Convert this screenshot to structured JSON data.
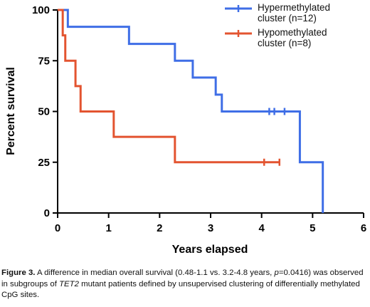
{
  "chart_data": {
    "type": "line",
    "step": true,
    "xlabel": "Years elapsed",
    "ylabel": "Percent survival",
    "xlim": [
      0,
      6
    ],
    "ylim": [
      0,
      100
    ],
    "xticks": [
      "0",
      "1",
      "2",
      "3",
      "4",
      "5",
      "6"
    ],
    "yticks": [
      "0",
      "25",
      "50",
      "75",
      "100"
    ],
    "grid": false,
    "legend": "top-right",
    "series": [
      {
        "name": "Hypermethylated cluster (n=12)",
        "legend_lines": [
          "Hypermethylated",
          "cluster (n=12)"
        ],
        "color": "#3f6ee6",
        "x": [
          0,
          0.2,
          1.4,
          2.3,
          2.65,
          3.1,
          3.22,
          4.75,
          5.2
        ],
        "y": [
          100,
          91.7,
          83.3,
          75,
          66.7,
          58.3,
          50,
          25,
          0
        ],
        "censored_x": [
          4.15,
          4.25,
          4.45
        ],
        "censored_y": [
          50,
          50,
          50
        ]
      },
      {
        "name": "Hypomethylated cluster (n=8)",
        "legend_lines": [
          "Hypomethylated",
          "cluster (n=8)"
        ],
        "color": "#e35430",
        "x": [
          0,
          0.1,
          0.15,
          0.35,
          0.45,
          1.1,
          2.3,
          4.35
        ],
        "y": [
          100,
          87.5,
          75,
          62.5,
          50,
          37.5,
          25,
          25
        ],
        "censored_x": [
          4.05,
          4.35
        ],
        "censored_y": [
          25,
          25
        ]
      }
    ]
  },
  "caption": {
    "label": "Figure 3.",
    "text_1": " A difference in median overall survival (0.48-1.1 vs. 3.2-4.8 years, ",
    "p": "p",
    "text_2": "=0.0416) was observed in subgroups of ",
    "gene": "TET2",
    "text_3": " mutant patients defined by unsupervised clustering of differentially methylated CpG sites."
  }
}
